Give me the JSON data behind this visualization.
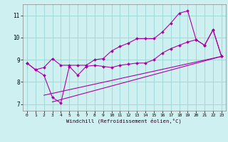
{
  "bg_color": "#cff0f0",
  "line_color": "#aa00aa",
  "grid_color": "#a0d8d8",
  "x_label": "Windchill (Refroidissement éolien,°C)",
  "x_ticks": [
    0,
    1,
    2,
    3,
    4,
    5,
    6,
    7,
    8,
    9,
    10,
    11,
    12,
    13,
    14,
    15,
    16,
    17,
    18,
    19,
    20,
    21,
    22,
    23
  ],
  "y_ticks": [
    7,
    8,
    9,
    10,
    11
  ],
  "xlim": [
    -0.5,
    23.5
  ],
  "ylim": [
    6.7,
    11.5
  ],
  "line1_x": [
    0,
    1,
    2,
    3,
    4,
    5,
    6,
    7,
    8,
    9,
    10,
    11,
    12,
    13,
    14,
    15,
    16,
    17,
    18,
    19,
    20,
    21,
    22,
    23
  ],
  "line1_y": [
    8.85,
    8.55,
    8.65,
    9.05,
    8.75,
    8.75,
    8.75,
    8.75,
    9.0,
    9.05,
    9.4,
    9.6,
    9.75,
    9.95,
    9.95,
    9.95,
    10.25,
    10.65,
    11.1,
    11.2,
    9.9,
    9.65,
    10.35,
    9.15
  ],
  "line2_x": [
    0,
    1,
    2,
    3,
    4,
    5,
    6,
    7,
    8,
    9,
    10,
    11,
    12,
    13,
    14,
    15,
    16,
    17,
    18,
    19,
    20,
    21,
    22,
    23
  ],
  "line2_y": [
    8.85,
    8.55,
    8.3,
    7.3,
    7.05,
    8.7,
    8.3,
    8.7,
    8.75,
    8.7,
    8.65,
    8.75,
    8.8,
    8.85,
    8.85,
    9.0,
    9.3,
    9.5,
    9.65,
    9.8,
    9.9,
    9.65,
    10.35,
    9.15
  ],
  "line3_x": [
    2,
    23
  ],
  "line3_y": [
    7.4,
    9.15
  ],
  "line4_x": [
    3,
    23
  ],
  "line4_y": [
    7.1,
    9.15
  ]
}
